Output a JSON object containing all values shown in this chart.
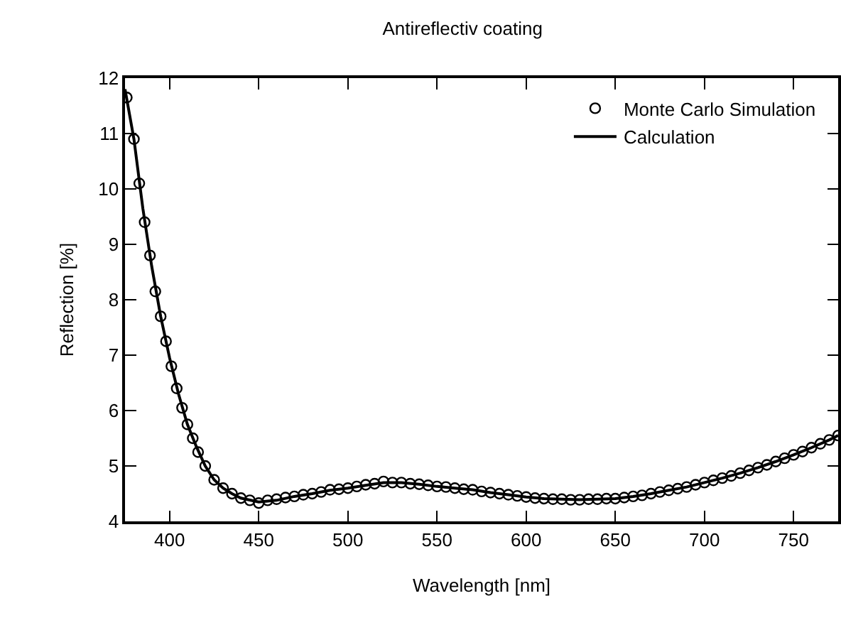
{
  "chart_data": {
    "type": "line",
    "title": "Antireflectiv coating",
    "xlabel": "Wavelength [nm]",
    "ylabel": "Reflection [%]",
    "xlim": [
      375,
      775
    ],
    "xticks": [
      400,
      450,
      500,
      550,
      600,
      650,
      700,
      750
    ],
    "ylim": [
      4,
      12
    ],
    "yticks": [
      4,
      5,
      6,
      7,
      8,
      9,
      10,
      11,
      12
    ],
    "grid": false,
    "legend": "top right",
    "series": [
      {
        "name": "Monte Carlo Simulation",
        "type": "scatter",
        "marker": "circle",
        "color": "#000000",
        "x": [
          376,
          380,
          383,
          386,
          389,
          392,
          395,
          398,
          401,
          404,
          407,
          410,
          413,
          416,
          420,
          425,
          430,
          435,
          440,
          445,
          450,
          455,
          460,
          465,
          470,
          475,
          480,
          485,
          490,
          495,
          500,
          505,
          510,
          515,
          520,
          525,
          530,
          535,
          540,
          545,
          550,
          555,
          560,
          565,
          570,
          575,
          580,
          585,
          590,
          595,
          600,
          605,
          610,
          615,
          620,
          625,
          630,
          635,
          640,
          645,
          650,
          655,
          660,
          665,
          670,
          675,
          680,
          685,
          690,
          695,
          700,
          705,
          710,
          715,
          720,
          725,
          730,
          735,
          740,
          745,
          750,
          755,
          760,
          765,
          770,
          775
        ],
        "values": [
          11.65,
          10.9,
          10.1,
          9.4,
          8.8,
          8.15,
          7.7,
          7.25,
          6.8,
          6.4,
          6.05,
          5.75,
          5.5,
          5.25,
          5.0,
          4.75,
          4.6,
          4.5,
          4.42,
          4.38,
          4.33,
          4.38,
          4.4,
          4.43,
          4.45,
          4.48,
          4.5,
          4.53,
          4.57,
          4.58,
          4.6,
          4.63,
          4.66,
          4.68,
          4.72,
          4.7,
          4.7,
          4.68,
          4.67,
          4.65,
          4.63,
          4.62,
          4.6,
          4.58,
          4.57,
          4.54,
          4.52,
          4.5,
          4.48,
          4.46,
          4.44,
          4.42,
          4.41,
          4.4,
          4.4,
          4.39,
          4.39,
          4.4,
          4.4,
          4.41,
          4.41,
          4.43,
          4.45,
          4.47,
          4.5,
          4.53,
          4.56,
          4.59,
          4.62,
          4.66,
          4.7,
          4.74,
          4.78,
          4.82,
          4.87,
          4.92,
          4.97,
          5.02,
          5.08,
          5.14,
          5.2,
          5.26,
          5.33,
          5.4,
          5.47,
          5.55
        ]
      },
      {
        "name": "Calculation",
        "marker": "none",
        "line_style": "solid",
        "color": "#000000",
        "x": [
          375,
          380,
          385,
          390,
          395,
          400,
          405,
          410,
          415,
          420,
          425,
          430,
          435,
          440,
          450,
          460,
          470,
          480,
          490,
          500,
          510,
          520,
          530,
          540,
          550,
          560,
          570,
          580,
          590,
          600,
          610,
          620,
          630,
          640,
          650,
          660,
          670,
          680,
          690,
          700,
          710,
          720,
          730,
          740,
          750,
          760,
          770,
          775
        ],
        "values": [
          11.8,
          10.9,
          9.65,
          8.6,
          7.7,
          6.95,
          6.3,
          5.75,
          5.35,
          5.0,
          4.75,
          4.6,
          4.5,
          4.42,
          4.35,
          4.38,
          4.45,
          4.5,
          4.56,
          4.6,
          4.65,
          4.7,
          4.7,
          4.67,
          4.63,
          4.6,
          4.57,
          4.52,
          4.48,
          4.44,
          4.41,
          4.4,
          4.39,
          4.4,
          4.41,
          4.45,
          4.5,
          4.56,
          4.62,
          4.7,
          4.78,
          4.87,
          4.97,
          5.08,
          5.2,
          5.33,
          5.47,
          5.55
        ]
      }
    ]
  }
}
